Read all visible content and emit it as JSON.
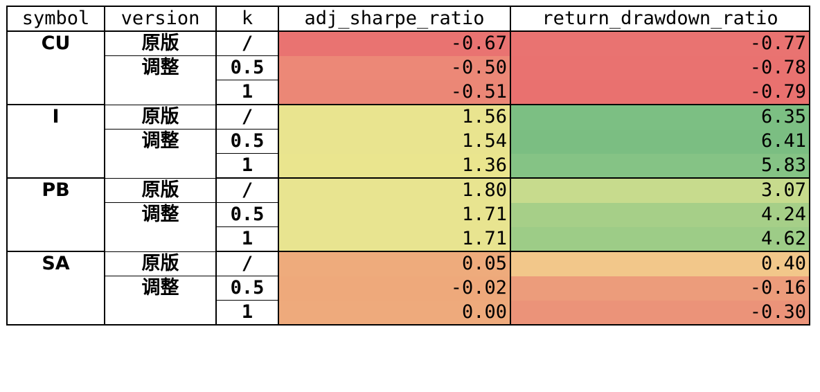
{
  "headers": [
    "symbol",
    "version",
    "k",
    "adj_sharpe_ratio",
    "return_drawdown_ratio"
  ],
  "groups": [
    {
      "symbol": "CU",
      "rows": [
        {
          "version": "原版",
          "k": "/",
          "adj": "-0.67",
          "rdr": "-0.77",
          "adj_color": "#e97371",
          "rdr_color": "#e97371"
        },
        {
          "version": "调整",
          "k": "0.5",
          "adj": "-0.50",
          "rdr": "-0.78",
          "adj_color": "#ec8877",
          "rdr_color": "#e97270"
        },
        {
          "version": "",
          "k": "1",
          "adj": "-0.51",
          "rdr": "-0.79",
          "adj_color": "#eb8776",
          "rdr_color": "#e9716f"
        }
      ]
    },
    {
      "symbol": "I",
      "rows": [
        {
          "version": "原版",
          "k": "/",
          "adj": "1.56",
          "rdr": "6.35",
          "adj_color": "#e9e48f",
          "rdr_color": "#7cbf83"
        },
        {
          "version": "调整",
          "k": "0.5",
          "adj": "1.54",
          "rdr": "6.41",
          "adj_color": "#e9e48f",
          "rdr_color": "#7bbe82"
        },
        {
          "version": "",
          "k": "1",
          "adj": "1.36",
          "rdr": "5.83",
          "adj_color": "#eae58e",
          "rdr_color": "#85c385"
        }
      ]
    },
    {
      "symbol": "PB",
      "rows": [
        {
          "version": "原版",
          "k": "/",
          "adj": "1.80",
          "rdr": "3.07",
          "adj_color": "#e8e490",
          "rdr_color": "#c7db8d"
        },
        {
          "version": "调整",
          "k": "0.5",
          "adj": "1.71",
          "rdr": "4.24",
          "adj_color": "#e8e490",
          "rdr_color": "#a6cf88"
        },
        {
          "version": "",
          "k": "1",
          "adj": "1.71",
          "rdr": "4.62",
          "adj_color": "#e8e490",
          "rdr_color": "#9dcc87"
        }
      ]
    },
    {
      "symbol": "SA",
      "rows": [
        {
          "version": "原版",
          "k": "/",
          "adj": "0.05",
          "rdr": "0.40",
          "adj_color": "#eeab7c",
          "rdr_color": "#f2c78a"
        },
        {
          "version": "调整",
          "k": "0.5",
          "adj": "-0.02",
          "rdr": "-0.16",
          "adj_color": "#eea97b",
          "rdr_color": "#ec9c7b"
        },
        {
          "version": "",
          "k": "1",
          "adj": "0.00",
          "rdr": "-0.30",
          "adj_color": "#eeaa7c",
          "rdr_color": "#eb9379"
        }
      ]
    }
  ]
}
